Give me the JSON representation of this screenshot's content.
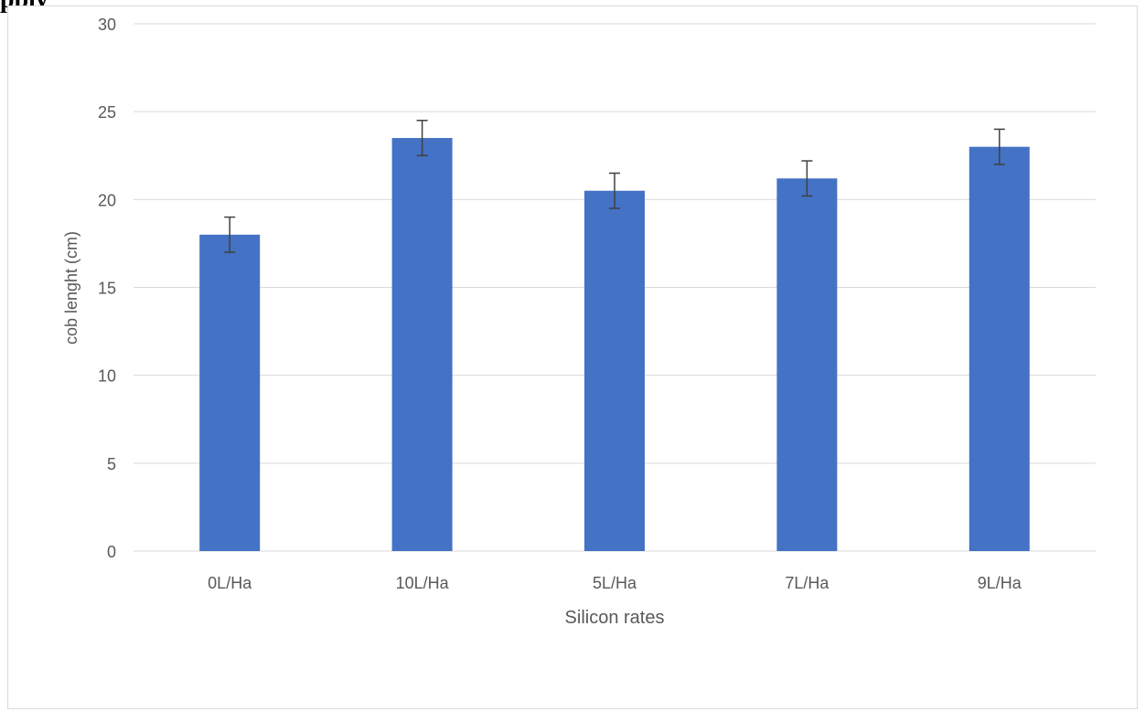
{
  "heading_fragment": "pply",
  "colors": {
    "bar": "#4472c4",
    "grid": "#d9d9d9",
    "errorbar": "#404040",
    "text": "#595959"
  },
  "chart_data": {
    "type": "bar",
    "categories": [
      "0L/Ha",
      "10L/Ha",
      "5L/Ha",
      "7L/Ha",
      "9L/Ha"
    ],
    "values": [
      18.0,
      23.5,
      20.5,
      21.2,
      23.0
    ],
    "error": [
      1.0,
      1.0,
      1.0,
      1.0,
      1.0
    ],
    "title": "",
    "xlabel": "Silicon rates",
    "ylabel": "cob lenght (cm)",
    "ylim": [
      0,
      30
    ],
    "yticks": [
      0,
      5,
      10,
      15,
      20,
      25,
      30
    ],
    "grid": true,
    "legend": "none"
  }
}
